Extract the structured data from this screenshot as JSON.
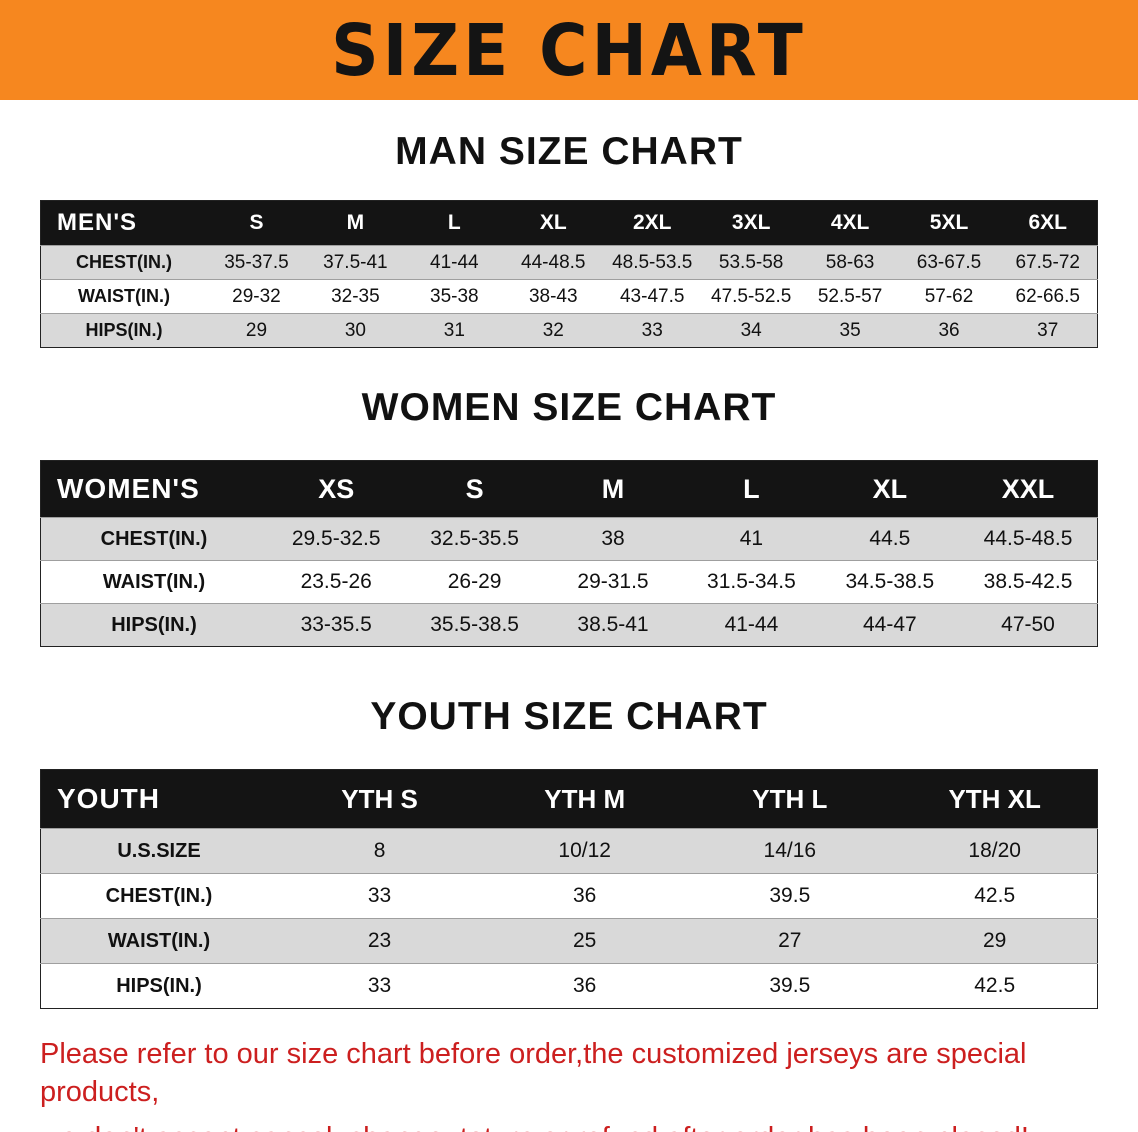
{
  "banner": {
    "title": "SIZE CHART"
  },
  "colors": {
    "banner_bg": "#f6871f",
    "table_header_bg": "#141414",
    "row_gray": "#d9d9d9",
    "row_white": "#ffffff",
    "disclaimer_text": "#cc1f1f"
  },
  "sections": [
    {
      "heading": "MAN SIZE CHART",
      "table": {
        "header": [
          "MEN'S",
          "S",
          "M",
          "L",
          "XL",
          "2XL",
          "3XL",
          "4XL",
          "5XL",
          "6XL"
        ],
        "rows": [
          {
            "label": "CHEST(IN.)",
            "values": [
              "35-37.5",
              "37.5-41",
              "41-44",
              "44-48.5",
              "48.5-53.5",
              "53.5-58",
              "58-63",
              "63-67.5",
              "67.5-72"
            ]
          },
          {
            "label": "WAIST(IN.)",
            "values": [
              "29-32",
              "32-35",
              "35-38",
              "38-43",
              "43-47.5",
              "47.5-52.5",
              "52.5-57",
              "57-62",
              "62-66.5"
            ]
          },
          {
            "label": "HIPS(IN.)",
            "values": [
              "29",
              "30",
              "31",
              "32",
              "33",
              "34",
              "35",
              "36",
              "37"
            ]
          }
        ]
      }
    },
    {
      "heading": "WOMEN SIZE CHART",
      "table": {
        "header": [
          "WOMEN'S",
          "XS",
          "S",
          "M",
          "L",
          "XL",
          "XXL"
        ],
        "rows": [
          {
            "label": "CHEST(IN.)",
            "values": [
              "29.5-32.5",
              "32.5-35.5",
              "38",
              "41",
              "44.5",
              "44.5-48.5"
            ]
          },
          {
            "label": "WAIST(IN.)",
            "values": [
              "23.5-26",
              "26-29",
              "29-31.5",
              "31.5-34.5",
              "34.5-38.5",
              "38.5-42.5"
            ]
          },
          {
            "label": "HIPS(IN.)",
            "values": [
              "33-35.5",
              "35.5-38.5",
              "38.5-41",
              "41-44",
              "44-47",
              "47-50"
            ]
          }
        ]
      }
    },
    {
      "heading": "YOUTH SIZE CHART",
      "table": {
        "header": [
          "YOUTH",
          "YTH S",
          "YTH M",
          "YTH L",
          "YTH XL"
        ],
        "rows": [
          {
            "label": "U.S.SIZE",
            "values": [
              "8",
              "10/12",
              "14/16",
              "18/20"
            ]
          },
          {
            "label": "CHEST(IN.)",
            "values": [
              "33",
              "36",
              "39.5",
              "42.5"
            ]
          },
          {
            "label": "WAIST(IN.)",
            "values": [
              "23",
              "25",
              "27",
              "29"
            ]
          },
          {
            "label": "HIPS(IN.)",
            "values": [
              "33",
              "36",
              "39.5",
              "42.5"
            ]
          }
        ]
      }
    }
  ],
  "footer": {
    "line1": "Please refer to our size chart before order,the customized jerseys are special products,",
    "line2": "we don't accept cancel, change, teturn or refund after order has been placed!"
  }
}
